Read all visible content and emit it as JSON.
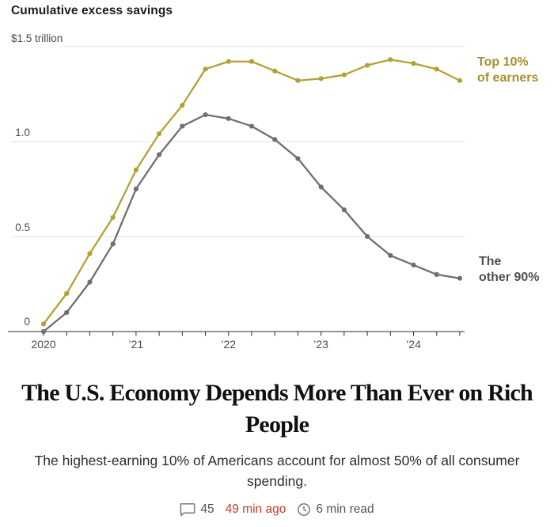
{
  "chart": {
    "title": "Cumulative excess savings",
    "top_axis_label": "$1.5 trillion",
    "y_tick_labels": [
      "1.0",
      "0.5",
      "0"
    ],
    "series_labels": {
      "top10": [
        "Top 10%",
        "of earners"
      ],
      "other90": [
        "The",
        "other 90%"
      ]
    }
  },
  "chart_data": {
    "type": "line",
    "title": "Cumulative excess savings",
    "unit": "trillion USD",
    "x": [
      "2020 Q1",
      "2020 Q2",
      "2020 Q3",
      "2020 Q4",
      "2021 Q1",
      "2021 Q2",
      "2021 Q3",
      "2021 Q4",
      "2022 Q1",
      "2022 Q2",
      "2022 Q3",
      "2022 Q4",
      "2023 Q1",
      "2023 Q2",
      "2023 Q3",
      "2023 Q4",
      "2024 Q1",
      "2024 Q2",
      "2024 Q3"
    ],
    "x_axis_tick_labels": [
      "2020",
      "’21",
      "’22",
      "’23",
      "’24"
    ],
    "yticks": [
      0,
      0.5,
      1.0,
      1.5
    ],
    "ylim": [
      0,
      1.55
    ],
    "grid": "horizontal",
    "legend_position": "right",
    "series": [
      {
        "name": "Top 10% of earners",
        "color": "#b5a133",
        "values": [
          0.04,
          0.2,
          0.41,
          0.6,
          0.85,
          1.04,
          1.19,
          1.38,
          1.42,
          1.42,
          1.37,
          1.32,
          1.33,
          1.35,
          1.4,
          1.43,
          1.41,
          1.38,
          1.32
        ]
      },
      {
        "name": "The other 90%",
        "color": "#6f6f6f",
        "values": [
          0.0,
          0.1,
          0.26,
          0.46,
          0.75,
          0.93,
          1.08,
          1.14,
          1.12,
          1.08,
          1.01,
          0.91,
          0.76,
          0.64,
          0.5,
          0.4,
          0.35,
          0.3,
          0.28
        ]
      }
    ]
  },
  "article": {
    "headline": "The U.S. Economy Depends More Than Ever on Rich People",
    "subhead": "The highest-earning 10% of Americans account for almost 50% of all consumer spending.",
    "meta": {
      "comments_count": "45",
      "time_ago": "49 min ago",
      "read_time": "6 min read"
    }
  },
  "colors": {
    "top10_line": "#b5a133",
    "top10_label": "#a6902c",
    "other90_line": "#6f6f6f",
    "other90_label": "#4e5052",
    "timestamp_red": "#c93b2c",
    "grid": "#e5e5e5",
    "axis": "#2b2b2b",
    "icon_gray": "#787878"
  }
}
